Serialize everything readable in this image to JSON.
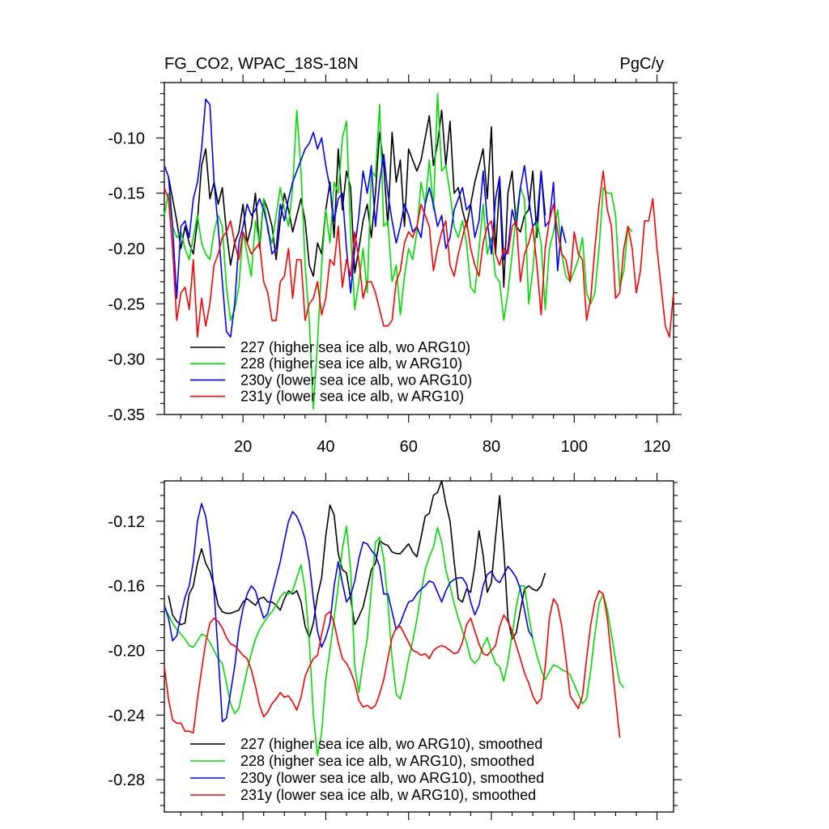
{
  "chart_data": [
    {
      "type": "line",
      "title": "FG_CO2, WPAC_18S-18N",
      "units": "PgC/y",
      "xlabel": "",
      "ylabel": "",
      "xlim": [
        1,
        124
      ],
      "ylim": [
        -0.35,
        -0.05
      ],
      "xticks": [
        20,
        40,
        60,
        80,
        100,
        120
      ],
      "xtick_labels": [
        "20",
        "40",
        "60",
        "80",
        "100",
        "120"
      ],
      "yticks": [
        -0.35,
        -0.3,
        -0.25,
        -0.2,
        -0.15,
        -0.1
      ],
      "ytick_labels": [
        "-0.35",
        "-0.30",
        "-0.25",
        "-0.20",
        "-0.15",
        "-0.10"
      ],
      "legend_position": "bottom-left",
      "series": [
        {
          "name": "227 (higher sea ice alb, wo ARG10)",
          "color": "#000000",
          "x_start": 2,
          "values": [
            -0.135,
            -0.155,
            -0.175,
            -0.2,
            -0.18,
            -0.195,
            -0.205,
            -0.175,
            -0.125,
            -0.11,
            -0.155,
            -0.14,
            -0.16,
            -0.145,
            -0.185,
            -0.215,
            -0.195,
            -0.185,
            -0.16,
            -0.195,
            -0.18,
            -0.15,
            -0.2,
            -0.155,
            -0.165,
            -0.18,
            -0.21,
            -0.175,
            -0.15,
            -0.165,
            -0.185,
            -0.17,
            -0.155,
            -0.175,
            -0.215,
            -0.225,
            -0.195,
            -0.205,
            -0.165,
            -0.14,
            -0.19,
            -0.11,
            -0.165,
            -0.13,
            -0.145,
            -0.222,
            -0.2,
            -0.175,
            -0.16,
            -0.19,
            -0.15,
            -0.095,
            -0.125,
            -0.18,
            -0.095,
            -0.14,
            -0.12,
            -0.18,
            -0.11,
            -0.12,
            -0.13,
            -0.12,
            -0.1,
            -0.08,
            -0.125,
            -0.105,
            -0.075,
            -0.125,
            -0.085,
            -0.15,
            -0.145,
            -0.165,
            -0.18,
            -0.16,
            -0.14,
            -0.125,
            -0.11,
            -0.155,
            -0.09,
            -0.205,
            -0.14,
            -0.235,
            -0.15,
            -0.13,
            -0.18,
            -0.185,
            -0.17,
            -0.165,
            -0.13,
            -0.19,
            -0.13,
            -0.17
          ]
        },
        {
          "name": "228 (higher sea ice alb, w ARG10)",
          "color": "#00dd00",
          "x_start": 1,
          "values": [
            -0.17,
            -0.15,
            -0.18,
            -0.19,
            -0.185,
            -0.2,
            -0.21,
            -0.19,
            -0.17,
            -0.195,
            -0.205,
            -0.21,
            -0.185,
            -0.17,
            -0.18,
            -0.235,
            -0.265,
            -0.255,
            -0.235,
            -0.185,
            -0.205,
            -0.225,
            -0.175,
            -0.195,
            -0.155,
            -0.185,
            -0.195,
            -0.17,
            -0.145,
            -0.165,
            -0.18,
            -0.145,
            -0.075,
            -0.13,
            -0.215,
            -0.265,
            -0.345,
            -0.285,
            -0.215,
            -0.165,
            -0.195,
            -0.14,
            -0.15,
            -0.1,
            -0.085,
            -0.185,
            -0.255,
            -0.23,
            -0.2,
            -0.24,
            -0.13,
            -0.135,
            -0.07,
            -0.18,
            -0.175,
            -0.23,
            -0.215,
            -0.26,
            -0.225,
            -0.2,
            -0.21,
            -0.185,
            -0.14,
            -0.16,
            -0.12,
            -0.165,
            -0.06,
            -0.13,
            -0.125,
            -0.15,
            -0.18,
            -0.19,
            -0.175,
            -0.195,
            -0.235,
            -0.24,
            -0.2,
            -0.16,
            -0.205,
            -0.19,
            -0.225,
            -0.23,
            -0.265,
            -0.24,
            -0.205,
            -0.17,
            -0.145,
            -0.155,
            -0.25,
            -0.22,
            -0.175,
            -0.195,
            -0.255,
            -0.2,
            -0.185,
            -0.165,
            -0.205,
            -0.225,
            -0.23,
            -0.22,
            -0.21,
            -0.19,
            -0.24,
            -0.25,
            -0.24,
            -0.2,
            -0.145,
            -0.15,
            -0.15,
            -0.17,
            -0.235,
            -0.22,
            -0.18,
            -0.185
          ]
        },
        {
          "name": "230y (lower sea ice alb, wo ARG10)",
          "color": "#0000ff",
          "x_start": 1,
          "values": [
            -0.125,
            -0.135,
            -0.18,
            -0.245,
            -0.18,
            -0.175,
            -0.19,
            -0.155,
            -0.14,
            -0.11,
            -0.065,
            -0.07,
            -0.14,
            -0.18,
            -0.23,
            -0.275,
            -0.28,
            -0.25,
            -0.195,
            -0.18,
            -0.16,
            -0.17,
            -0.165,
            -0.155,
            -0.165,
            -0.18,
            -0.205,
            -0.2,
            -0.16,
            -0.175,
            -0.155,
            -0.14,
            -0.13,
            -0.12,
            -0.11,
            -0.105,
            -0.095,
            -0.11,
            -0.1,
            -0.125,
            -0.145,
            -0.175,
            -0.155,
            -0.15,
            -0.2,
            -0.24,
            -0.2,
            -0.17,
            -0.13,
            -0.15,
            -0.125,
            -0.18,
            -0.14,
            -0.115,
            -0.15,
            -0.175,
            -0.195,
            -0.18,
            -0.16,
            -0.17,
            -0.185,
            -0.18,
            -0.19,
            -0.16,
            -0.145,
            -0.16,
            -0.18,
            -0.17,
            -0.2,
            -0.19,
            -0.165,
            -0.155,
            -0.145,
            -0.165,
            -0.16,
            -0.19,
            -0.175,
            -0.13,
            -0.175,
            -0.205,
            -0.155,
            -0.135,
            -0.21,
            -0.2,
            -0.165,
            -0.18,
            -0.145,
            -0.125,
            -0.155,
            -0.18,
            -0.175,
            -0.13,
            -0.18,
            -0.175,
            -0.14,
            -0.22,
            -0.18,
            -0.195
          ]
        },
        {
          "name": "231y (lower sea ice alb, w ARG10)",
          "color": "#ff0000",
          "x_start": 1,
          "values": [
            -0.145,
            -0.155,
            -0.2,
            -0.265,
            -0.24,
            -0.235,
            -0.255,
            -0.21,
            -0.28,
            -0.245,
            -0.27,
            -0.25,
            -0.215,
            -0.205,
            -0.19,
            -0.185,
            -0.175,
            -0.195,
            -0.21,
            -0.185,
            -0.195,
            -0.205,
            -0.2,
            -0.195,
            -0.23,
            -0.24,
            -0.265,
            -0.265,
            -0.23,
            -0.225,
            -0.2,
            -0.245,
            -0.21,
            -0.21,
            -0.265,
            -0.25,
            -0.245,
            -0.23,
            -0.26,
            -0.245,
            -0.21,
            -0.215,
            -0.18,
            -0.235,
            -0.21,
            -0.225,
            -0.185,
            -0.21,
            -0.245,
            -0.23,
            -0.23,
            -0.24,
            -0.255,
            -0.27,
            -0.27,
            -0.265,
            -0.23,
            -0.22,
            -0.195,
            -0.185,
            -0.19,
            -0.18,
            -0.16,
            -0.17,
            -0.18,
            -0.22,
            -0.2,
            -0.185,
            -0.175,
            -0.215,
            -0.225,
            -0.205,
            -0.19,
            -0.175,
            -0.2,
            -0.215,
            -0.225,
            -0.195,
            -0.18,
            -0.175,
            -0.205,
            -0.215,
            -0.2,
            -0.205,
            -0.18,
            -0.175,
            -0.23,
            -0.205,
            -0.195,
            -0.18,
            -0.215,
            -0.26,
            -0.2,
            -0.175,
            -0.16,
            -0.185,
            -0.205,
            -0.21,
            -0.23,
            -0.185,
            -0.205,
            -0.21,
            -0.265,
            -0.245,
            -0.2,
            -0.16,
            -0.13,
            -0.165,
            -0.18,
            -0.245,
            -0.24,
            -0.2,
            -0.18,
            -0.2,
            -0.24,
            -0.22,
            -0.175,
            -0.175,
            -0.155,
            -0.2,
            -0.235,
            -0.27,
            -0.28,
            -0.24
          ]
        }
      ]
    },
    {
      "type": "line",
      "title": "",
      "xlabel": "",
      "ylabel": "",
      "xlim": [
        1,
        124
      ],
      "ylim": [
        -0.3,
        -0.095
      ],
      "xticks": [
        20,
        40,
        60,
        80,
        100,
        120
      ],
      "yticks": [
        -0.28,
        -0.24,
        -0.2,
        -0.16,
        -0.12
      ],
      "ytick_labels": [
        "-0.28",
        "-0.24",
        "-0.20",
        "-0.16",
        "-0.12"
      ],
      "legend_position": "bottom-left",
      "series": [
        {
          "name": "227 (higher sea ice alb, wo ARG10), smoothed",
          "color": "#000000",
          "x_start": 2,
          "values": [
            -0.166,
            -0.178,
            -0.182,
            -0.184,
            -0.183,
            -0.165,
            -0.16,
            -0.146,
            -0.137,
            -0.146,
            -0.151,
            -0.16,
            -0.172,
            -0.176,
            -0.177,
            -0.177,
            -0.176,
            -0.175,
            -0.17,
            -0.168,
            -0.17,
            -0.172,
            -0.168,
            -0.167,
            -0.17,
            -0.17,
            -0.172,
            -0.175,
            -0.168,
            -0.163,
            -0.165,
            -0.163,
            -0.17,
            -0.185,
            -0.192,
            -0.183,
            -0.166,
            -0.155,
            -0.129,
            -0.11,
            -0.116,
            -0.14,
            -0.15,
            -0.152,
            -0.168,
            -0.184,
            -0.179,
            -0.173,
            -0.162,
            -0.15,
            -0.146,
            -0.132,
            -0.134,
            -0.135,
            -0.139,
            -0.14,
            -0.14,
            -0.137,
            -0.134,
            -0.139,
            -0.142,
            -0.13,
            -0.117,
            -0.115,
            -0.104,
            -0.102,
            -0.095,
            -0.109,
            -0.12,
            -0.145,
            -0.168,
            -0.17,
            -0.162,
            -0.164,
            -0.148,
            -0.126,
            -0.141,
            -0.164,
            -0.158,
            -0.13,
            -0.104,
            -0.137,
            -0.18,
            -0.193,
            -0.189,
            -0.175,
            -0.162,
            -0.16,
            -0.162,
            -0.163,
            -0.16,
            -0.152
          ]
        },
        {
          "name": "228 (higher sea ice alb, w ARG10), smoothed",
          "color": "#00dd00",
          "x_start": 1,
          "values": [
            -0.173,
            -0.178,
            -0.183,
            -0.187,
            -0.19,
            -0.193,
            -0.197,
            -0.198,
            -0.194,
            -0.19,
            -0.191,
            -0.195,
            -0.2,
            -0.205,
            -0.208,
            -0.22,
            -0.233,
            -0.239,
            -0.236,
            -0.224,
            -0.212,
            -0.202,
            -0.193,
            -0.187,
            -0.183,
            -0.179,
            -0.176,
            -0.172,
            -0.167,
            -0.164,
            -0.165,
            -0.163,
            -0.155,
            -0.147,
            -0.162,
            -0.194,
            -0.24,
            -0.265,
            -0.251,
            -0.218,
            -0.2,
            -0.18,
            -0.16,
            -0.137,
            -0.123,
            -0.15,
            -0.21,
            -0.226,
            -0.207,
            -0.193,
            -0.162,
            -0.133,
            -0.13,
            -0.143,
            -0.17,
            -0.205,
            -0.227,
            -0.23,
            -0.219,
            -0.205,
            -0.194,
            -0.181,
            -0.164,
            -0.15,
            -0.142,
            -0.136,
            -0.124,
            -0.133,
            -0.15,
            -0.16,
            -0.171,
            -0.18,
            -0.188,
            -0.195,
            -0.205,
            -0.208,
            -0.205,
            -0.197,
            -0.192,
            -0.201,
            -0.208,
            -0.21,
            -0.219,
            -0.207,
            -0.19,
            -0.173,
            -0.16,
            -0.16,
            -0.178,
            -0.193,
            -0.203,
            -0.212,
            -0.218,
            -0.213,
            -0.209,
            -0.21,
            -0.212,
            -0.213,
            -0.215,
            -0.221,
            -0.227,
            -0.233,
            -0.23,
            -0.212,
            -0.19,
            -0.171,
            -0.165,
            -0.175,
            -0.19,
            -0.206,
            -0.22,
            -0.223
          ]
        },
        {
          "name": "230y (lower sea ice alb, wo ARG10), smoothed",
          "color": "#0000ff",
          "x_start": 1,
          "values": [
            -0.172,
            -0.18,
            -0.194,
            -0.191,
            -0.178,
            -0.167,
            -0.16,
            -0.145,
            -0.12,
            -0.109,
            -0.117,
            -0.135,
            -0.163,
            -0.202,
            -0.244,
            -0.242,
            -0.226,
            -0.21,
            -0.188,
            -0.174,
            -0.165,
            -0.16,
            -0.163,
            -0.172,
            -0.18,
            -0.177,
            -0.165,
            -0.155,
            -0.145,
            -0.132,
            -0.12,
            -0.114,
            -0.117,
            -0.123,
            -0.131,
            -0.145,
            -0.168,
            -0.188,
            -0.198,
            -0.192,
            -0.183,
            -0.16,
            -0.145,
            -0.158,
            -0.17,
            -0.166,
            -0.157,
            -0.143,
            -0.133,
            -0.134,
            -0.138,
            -0.141,
            -0.148,
            -0.165,
            -0.165,
            -0.176,
            -0.187,
            -0.183,
            -0.176,
            -0.17,
            -0.169,
            -0.165,
            -0.162,
            -0.16,
            -0.157,
            -0.158,
            -0.164,
            -0.17,
            -0.163,
            -0.158,
            -0.156,
            -0.155,
            -0.155,
            -0.159,
            -0.17,
            -0.178,
            -0.172,
            -0.16,
            -0.153,
            -0.151,
            -0.156,
            -0.158,
            -0.153,
            -0.148,
            -0.151,
            -0.155,
            -0.162,
            -0.175,
            -0.188,
            -0.192
          ]
        },
        {
          "name": "231y (lower sea ice alb, w ARG10), smoothed",
          "color": "#ff0000",
          "x_start": 1,
          "values": [
            -0.21,
            -0.23,
            -0.243,
            -0.245,
            -0.245,
            -0.25,
            -0.25,
            -0.251,
            -0.23,
            -0.212,
            -0.195,
            -0.183,
            -0.18,
            -0.182,
            -0.186,
            -0.192,
            -0.196,
            -0.197,
            -0.2,
            -0.203,
            -0.205,
            -0.212,
            -0.222,
            -0.234,
            -0.241,
            -0.238,
            -0.233,
            -0.23,
            -0.226,
            -0.229,
            -0.228,
            -0.232,
            -0.237,
            -0.229,
            -0.216,
            -0.21,
            -0.205,
            -0.203,
            -0.19,
            -0.178,
            -0.176,
            -0.183,
            -0.195,
            -0.205,
            -0.208,
            -0.213,
            -0.22,
            -0.231,
            -0.235,
            -0.234,
            -0.236,
            -0.234,
            -0.227,
            -0.218,
            -0.205,
            -0.192,
            -0.186,
            -0.185,
            -0.19,
            -0.195,
            -0.2,
            -0.201,
            -0.203,
            -0.202,
            -0.205,
            -0.2,
            -0.198,
            -0.197,
            -0.198,
            -0.2,
            -0.202,
            -0.201,
            -0.195,
            -0.184,
            -0.18,
            -0.188,
            -0.196,
            -0.202,
            -0.203,
            -0.2,
            -0.197,
            -0.185,
            -0.178,
            -0.182,
            -0.188,
            -0.197,
            -0.205,
            -0.214,
            -0.22,
            -0.228,
            -0.233,
            -0.23,
            -0.21,
            -0.18,
            -0.168,
            -0.172,
            -0.185,
            -0.205,
            -0.228,
            -0.232,
            -0.236,
            -0.228,
            -0.205,
            -0.184,
            -0.17,
            -0.163,
            -0.165,
            -0.18,
            -0.205,
            -0.23,
            -0.254
          ]
        }
      ]
    }
  ]
}
